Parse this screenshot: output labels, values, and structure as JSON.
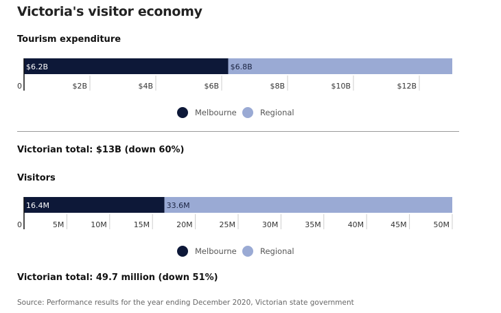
{
  "title": "Victoria's visitor economy",
  "colors": {
    "melbourne": "#0d1838",
    "regional": "#9aaad4"
  },
  "legend": {
    "melbourne": "Melbourne",
    "regional": "Regional"
  },
  "source": "Source: Performance results for the year ending December 2020, Victorian state government",
  "chart_data": [
    {
      "type": "bar",
      "orientation": "horizontal-stacked",
      "title": "Tourism expenditure",
      "total_label": "Victorian total: $13B (down 60%)",
      "series": [
        {
          "name": "Melbourne",
          "values": [
            6.2
          ],
          "label": "$6.2B"
        },
        {
          "name": "Regional",
          "values": [
            6.8
          ],
          "label": "$6.8B"
        }
      ],
      "xlim": [
        0,
        13
      ],
      "ticks": [
        0,
        2,
        4,
        6,
        8,
        10,
        12
      ],
      "tick_labels": [
        "0",
        "$2B",
        "$4B",
        "$6B",
        "$8B",
        "$10B",
        "$12B"
      ]
    },
    {
      "type": "bar",
      "orientation": "horizontal-stacked",
      "title": "Visitors",
      "total_label": "Victorian total: 49.7 million (down 51%)",
      "series": [
        {
          "name": "Melbourne",
          "values": [
            16.4
          ],
          "label": "16.4M"
        },
        {
          "name": "Regional",
          "values": [
            33.6
          ],
          "label": "33.6M"
        }
      ],
      "xlim": [
        0,
        50
      ],
      "ticks": [
        0,
        5,
        10,
        15,
        20,
        25,
        30,
        35,
        40,
        45,
        50
      ],
      "tick_labels": [
        "0",
        "5M",
        "10M",
        "15M",
        "20M",
        "25M",
        "30M",
        "35M",
        "40M",
        "45M",
        "50M"
      ]
    }
  ]
}
